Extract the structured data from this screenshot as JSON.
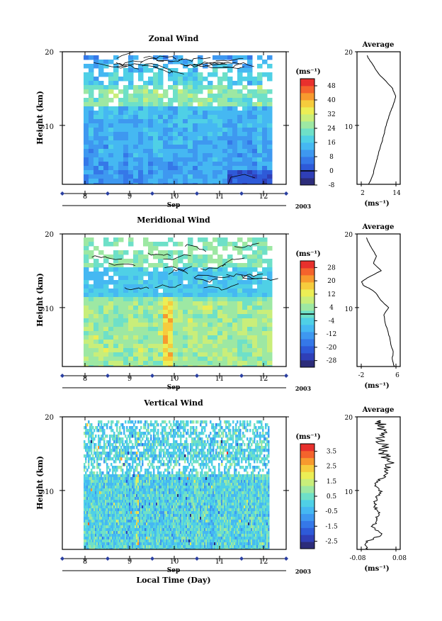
{
  "chart_data": [
    {
      "type": "heatmap",
      "title": "Zonal Wind",
      "ylabel": "Height (km)",
      "ylim": [
        2,
        20
      ],
      "yticks": [
        "10",
        "20"
      ],
      "x_day_ticks": [
        "8",
        "9",
        "10",
        "11",
        "12"
      ],
      "x_month": "Sep",
      "x_year": "2003",
      "colorbar": {
        "unit": "(ms⁻¹)",
        "ticks": [
          "48",
          "40",
          "32",
          "24",
          "16",
          "8",
          "0",
          "-8"
        ],
        "range": [
          -8,
          52
        ],
        "colors": [
          "#2c2c7a",
          "#2f3fb7",
          "#2e5ad8",
          "#3578e8",
          "#3e98f0",
          "#45b8f2",
          "#4fd0e6",
          "#6ee0c8",
          "#9de8a3",
          "#c9ee7a",
          "#ecee55",
          "#f6cc3d",
          "#f79a2e",
          "#f4632c",
          "#e8302d"
        ]
      },
      "field": {
        "base_value": 10,
        "jet_value": 18,
        "contour_values": [
          0
        ]
      },
      "average_profile": {
        "title": "Average",
        "xlabel": "(ms⁻¹)",
        "xticks": [
          "2",
          "14"
        ],
        "xlim": [
          2,
          14
        ],
        "yticks": [
          "10",
          "20"
        ],
        "height_km": [
          2,
          3,
          4,
          5,
          6,
          7,
          8,
          9,
          10,
          11,
          12,
          13,
          14,
          15,
          16,
          17,
          18,
          19,
          19.5
        ],
        "values": [
          4.5,
          5.8,
          6.5,
          7.2,
          7.8,
          8.6,
          9.3,
          10.0,
          10.6,
          11.4,
          12.3,
          13.3,
          13.9,
          12.8,
          10.6,
          8.0,
          6.4,
          4.7,
          4.0
        ]
      }
    },
    {
      "type": "heatmap",
      "title": "Meridional Wind",
      "ylabel": "Height (km)",
      "ylim": [
        2,
        20
      ],
      "yticks": [
        "10",
        "20"
      ],
      "x_day_ticks": [
        "8",
        "9",
        "10",
        "11",
        "12"
      ],
      "x_month": "Sep",
      "x_year": "2003",
      "colorbar": {
        "unit": "(ms⁻¹)",
        "ticks": [
          "28",
          "20",
          "12",
          "4",
          "-4",
          "-12",
          "-20",
          "-28"
        ],
        "range": [
          -32,
          32
        ],
        "colors": [
          "#2c2c7a",
          "#2f3fb7",
          "#2e5ad8",
          "#3578e8",
          "#3e98f0",
          "#45b8f2",
          "#4fd0e6",
          "#6ee0c8",
          "#9de8a3",
          "#c9ee7a",
          "#ecee55",
          "#f6cc3d",
          "#f79a2e",
          "#f4632c",
          "#e8302d"
        ]
      },
      "field": {
        "base_value": 2,
        "jet_value": -8,
        "contour_values": [
          0
        ]
      },
      "average_profile": {
        "title": "Average",
        "xlabel": "(ms⁻¹)",
        "xticks": [
          "-2",
          "6"
        ],
        "xlim": [
          -2,
          6
        ],
        "yticks": [
          "10",
          "20"
        ],
        "height_km": [
          2,
          3,
          4,
          5,
          6,
          7,
          8,
          9,
          10,
          11,
          12,
          12.5,
          13,
          13.5,
          14,
          15,
          16,
          17,
          18,
          19,
          19.5
        ],
        "values": [
          5.6,
          5.1,
          5.4,
          4.8,
          4.5,
          4.0,
          3.5,
          3.2,
          4.3,
          2.5,
          1.3,
          0.2,
          -1.5,
          -1.9,
          -0.7,
          2.6,
          0.8,
          1.5,
          0.5,
          -0.5,
          -0.8
        ]
      }
    },
    {
      "type": "heatmap",
      "title": "Vertical Wind",
      "ylabel": "Height (km)",
      "ylim": [
        2,
        20
      ],
      "yticks": [
        "10",
        "20"
      ],
      "x_day_ticks": [
        "8",
        "9",
        "10",
        "11",
        "12"
      ],
      "x_month": "Sep",
      "x_year": "2003",
      "xlabel": "Local Time (Day)",
      "colorbar": {
        "unit": "(ms⁻¹)",
        "ticks": [
          "3.5",
          "2.5",
          "1.5",
          "0.5",
          "-0.5",
          "-1.5",
          "-2.5"
        ],
        "range": [
          -3,
          4
        ],
        "colors": [
          "#2c2c7a",
          "#2f3fb7",
          "#2e5ad8",
          "#3578e8",
          "#3e98f0",
          "#45b8f2",
          "#4fd0e6",
          "#6ee0c8",
          "#9de8a3",
          "#c9ee7a",
          "#ecee55",
          "#f6cc3d",
          "#f79a2e",
          "#f4632c",
          "#e8302d"
        ]
      },
      "field": {
        "base_value": 0.1,
        "jet_value": 0.4,
        "contour_values": []
      },
      "average_profile": {
        "title": "Average",
        "xlabel": "(ms⁻¹)",
        "xticks": [
          "-0.08",
          "0.08"
        ],
        "xlim": [
          -0.08,
          0.08
        ],
        "yticks": [
          "10",
          "20"
        ],
        "height_km": [
          2,
          3,
          4,
          5,
          6,
          7,
          8,
          9,
          10,
          11,
          12,
          13,
          14,
          15,
          16,
          17,
          18,
          19,
          19.5
        ],
        "values": [
          -0.05,
          -0.06,
          0.02,
          -0.03,
          -0.01,
          0.0,
          -0.02,
          -0.01,
          0.01,
          -0.02,
          0.03,
          0.04,
          0.05,
          0.02,
          0.03,
          0.0,
          0.02,
          0.01,
          0.0
        ]
      }
    }
  ]
}
